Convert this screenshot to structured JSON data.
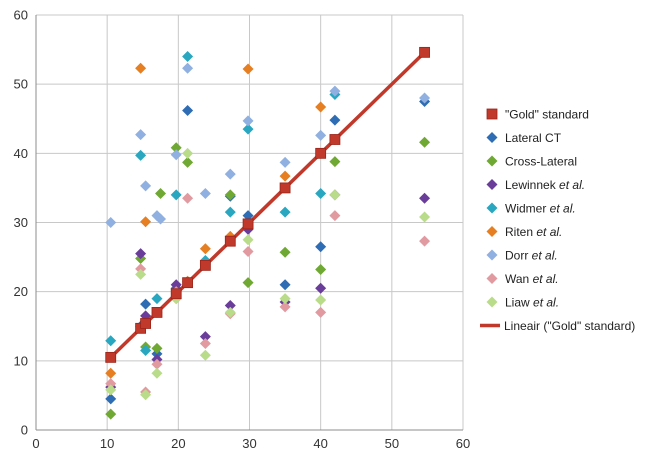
{
  "chart_data": {
    "type": "scatter",
    "title": "",
    "xlabel": "",
    "ylabel": "",
    "xlim": [
      0,
      60
    ],
    "ylim": [
      0,
      60
    ],
    "x_ticks": [
      "0",
      "10",
      "20",
      "30",
      "40",
      "50",
      "60"
    ],
    "y_ticks": [
      "0",
      "10",
      "20",
      "30",
      "40",
      "50",
      "60"
    ],
    "grid": true,
    "legend_position": "right",
    "series": [
      {
        "name": "\"Gold\" standard",
        "marker": "square",
        "color": "#c0392b",
        "points": [
          [
            10.5,
            10.5
          ],
          [
            14.7,
            14.7
          ],
          [
            15.4,
            15.4
          ],
          [
            17.0,
            17.0
          ],
          [
            19.7,
            19.7
          ],
          [
            21.3,
            21.3
          ],
          [
            23.8,
            23.8
          ],
          [
            27.3,
            27.3
          ],
          [
            29.8,
            29.8
          ],
          [
            35.0,
            35.0
          ],
          [
            40.0,
            40.0
          ],
          [
            42.0,
            42.0
          ],
          [
            54.6,
            54.6
          ]
        ]
      },
      {
        "name": "Lateral CT",
        "marker": "diamond",
        "color": "#2e6db4",
        "points": [
          [
            10.5,
            4.5
          ],
          [
            14.7,
            15.0
          ],
          [
            15.4,
            18.2
          ],
          [
            17.0,
            11.0
          ],
          [
            19.7,
            20.5
          ],
          [
            21.3,
            46.2
          ],
          [
            23.8,
            24.0
          ],
          [
            27.3,
            33.8
          ],
          [
            29.8,
            31.0
          ],
          [
            35.0,
            21.0
          ],
          [
            40.0,
            26.5
          ],
          [
            42.0,
            44.8
          ],
          [
            54.6,
            47.5
          ]
        ]
      },
      {
        "name": "Cross-Lateral",
        "marker": "diamond",
        "color": "#6fa832",
        "points": [
          [
            10.5,
            2.3
          ],
          [
            14.7,
            24.8
          ],
          [
            15.4,
            12.0
          ],
          [
            17.0,
            11.8
          ],
          [
            17.5,
            34.2
          ],
          [
            19.7,
            40.8
          ],
          [
            21.3,
            38.7
          ],
          [
            27.3,
            34.0
          ],
          [
            29.8,
            21.3
          ],
          [
            35.0,
            25.7
          ],
          [
            40.0,
            23.2
          ],
          [
            42.0,
            38.8
          ],
          [
            54.6,
            41.6
          ]
        ]
      },
      {
        "name": "Lewinnek et al.",
        "marker": "diamond",
        "color": "#6a3d9a",
        "points": [
          [
            10.5,
            6.2
          ],
          [
            14.7,
            25.5
          ],
          [
            15.4,
            16.5
          ],
          [
            17.0,
            10.2
          ],
          [
            19.7,
            21.0
          ],
          [
            23.8,
            13.5
          ],
          [
            27.3,
            18.0
          ],
          [
            29.8,
            29.0
          ],
          [
            35.0,
            18.5
          ],
          [
            40.0,
            20.5
          ],
          [
            42.0,
            34.0
          ],
          [
            54.6,
            33.5
          ]
        ]
      },
      {
        "name": "Widmer et al.",
        "marker": "diamond",
        "color": "#2aa7c0",
        "points": [
          [
            10.5,
            12.9
          ],
          [
            14.7,
            39.7
          ],
          [
            15.4,
            11.5
          ],
          [
            17.0,
            19.0
          ],
          [
            19.7,
            34.0
          ],
          [
            21.3,
            54.0
          ],
          [
            23.8,
            24.5
          ],
          [
            27.3,
            31.5
          ],
          [
            29.8,
            43.5
          ],
          [
            35.0,
            31.5
          ],
          [
            40.0,
            34.2
          ],
          [
            42.0,
            48.5
          ]
        ]
      },
      {
        "name": "Riten et al.",
        "marker": "diamond",
        "color": "#e67e22",
        "points": [
          [
            10.5,
            8.2
          ],
          [
            14.7,
            52.3
          ],
          [
            15.4,
            30.1
          ],
          [
            17.0,
            17.0
          ],
          [
            19.7,
            19.0
          ],
          [
            21.3,
            21.5
          ],
          [
            23.8,
            26.2
          ],
          [
            27.3,
            28.0
          ],
          [
            29.8,
            52.2
          ],
          [
            35.0,
            36.7
          ],
          [
            40.0,
            46.7
          ],
          [
            42.0,
            42.0
          ]
        ]
      },
      {
        "name": "Dorr et al.",
        "marker": "diamond",
        "color": "#8fb0e0",
        "points": [
          [
            10.5,
            30.0
          ],
          [
            14.7,
            42.7
          ],
          [
            15.4,
            35.3
          ],
          [
            17.0,
            31.0
          ],
          [
            17.5,
            30.5
          ],
          [
            19.7,
            39.8
          ],
          [
            21.3,
            52.3
          ],
          [
            23.8,
            34.2
          ],
          [
            27.3,
            37.0
          ],
          [
            29.8,
            44.7
          ],
          [
            35.0,
            38.7
          ],
          [
            40.0,
            42.6
          ],
          [
            42.0,
            49.0
          ],
          [
            54.6,
            48.0
          ]
        ]
      },
      {
        "name": "Wan et al.",
        "marker": "diamond",
        "color": "#e09aa0",
        "points": [
          [
            10.5,
            6.7
          ],
          [
            14.7,
            23.3
          ],
          [
            15.4,
            5.5
          ],
          [
            17.0,
            9.5
          ],
          [
            19.7,
            20.0
          ],
          [
            21.3,
            33.5
          ],
          [
            23.8,
            12.5
          ],
          [
            27.3,
            16.8
          ],
          [
            29.8,
            25.8
          ],
          [
            35.0,
            17.8
          ],
          [
            40.0,
            17.0
          ],
          [
            42.0,
            31.0
          ],
          [
            54.6,
            27.3
          ]
        ]
      },
      {
        "name": "Liaw et al.",
        "marker": "diamond",
        "color": "#b9dc8a",
        "points": [
          [
            10.5,
            5.8
          ],
          [
            14.7,
            22.5
          ],
          [
            15.4,
            5.1
          ],
          [
            17.0,
            8.2
          ],
          [
            19.7,
            19.0
          ],
          [
            21.3,
            40.0
          ],
          [
            23.8,
            10.8
          ],
          [
            27.3,
            17.0
          ],
          [
            29.8,
            27.5
          ],
          [
            35.0,
            19.0
          ],
          [
            40.0,
            18.8
          ],
          [
            42.0,
            34.0
          ],
          [
            54.6,
            30.8
          ]
        ]
      },
      {
        "name": "Lineair (\"Gold\" standard)",
        "marker": "line",
        "color": "#c0392b",
        "points": [
          [
            10.5,
            10.5
          ],
          [
            54.6,
            54.6
          ]
        ]
      }
    ]
  }
}
